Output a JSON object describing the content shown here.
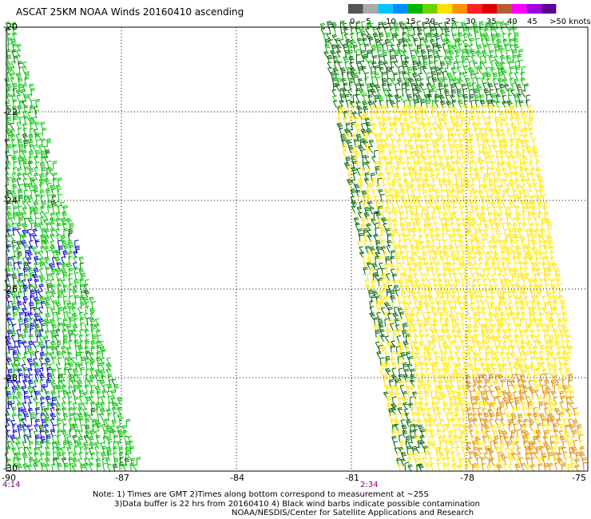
{
  "title": "ASCAT 25KM NOAA Winds 20160410 ascending",
  "legend": {
    "labels": [
      "0",
      "5",
      "10",
      "15",
      "20",
      "25",
      "30",
      "35",
      "40",
      "45",
      ">50 knots"
    ],
    "colors": [
      "#555555",
      "#aaaaaa",
      "#00c8ff",
      "#0090ff",
      "#00b400",
      "#70d000",
      "#ffe000",
      "#ff9000",
      "#ff2020",
      "#e00000",
      "#b06030",
      "#ff00ff",
      "#a000e0",
      "#600090"
    ]
  },
  "map": {
    "lat_labels": [
      "-20",
      "-22",
      "-24",
      "-26",
      "-28",
      "-30"
    ],
    "lon_labels": [
      "-90",
      "-87",
      "-84",
      "-81",
      "-78",
      "-75"
    ],
    "time_labels": [
      "4:14",
      "2:34"
    ]
  },
  "notes": {
    "line1": "Note: 1) Times are GMT 2)Times along bottom correspond to measurement at ~25S",
    "line2": "3)Data buffer is 22 hrs from 20160410 4) Black wind barbs indicate possible contamination",
    "line3": "NOAA/NESDIS/Center for Satellite Applications and Research"
  },
  "barb_colors": {
    "green": "#00c000",
    "dark_green": "#006400",
    "blue": "#0000c8",
    "yellow": "#ffe600",
    "orange": "#e08c00"
  }
}
